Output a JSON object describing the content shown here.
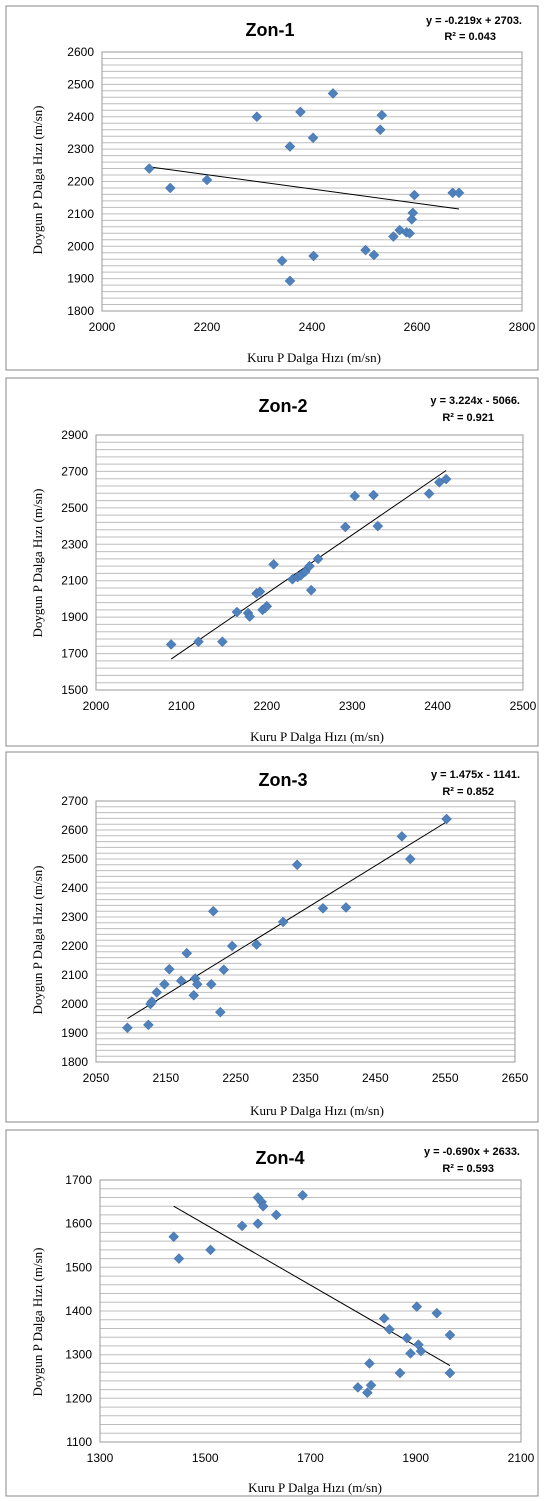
{
  "chart_data": [
    {
      "type": "scatter",
      "title": "Zon-1",
      "xlabel": "Kuru P Dalga Hızı (m/sn)",
      "ylabel": "Doygun P Dalga Hızı (m/sn)",
      "xlim": [
        2000,
        2800
      ],
      "ylim": [
        1800,
        2600
      ],
      "xticks": [
        2000,
        2200,
        2400,
        2600,
        2800
      ],
      "yticks": [
        1800,
        1900,
        2000,
        2100,
        2200,
        2300,
        2400,
        2500,
        2600
      ],
      "grid": "horizontal",
      "marker_color": "#4F81BD",
      "trendline": {
        "x": [
          2090,
          2680
        ],
        "y": [
          2245,
          2115
        ],
        "equation": "y = -0.219x + 2703.",
        "r2": "R² = 0.043"
      },
      "points": [
        [
          2090,
          2240
        ],
        [
          2130,
          2180
        ],
        [
          2200,
          2205
        ],
        [
          2295,
          2400
        ],
        [
          2358,
          2308
        ],
        [
          2378,
          2415
        ],
        [
          2402,
          2335
        ],
        [
          2440,
          2472
        ],
        [
          2530,
          2360
        ],
        [
          2533,
          2405
        ],
        [
          2343,
          1955
        ],
        [
          2358,
          1893
        ],
        [
          2403,
          1970
        ],
        [
          2502,
          1988
        ],
        [
          2518,
          1973
        ],
        [
          2555,
          2030
        ],
        [
          2567,
          2050
        ],
        [
          2580,
          2043
        ],
        [
          2586,
          2040
        ],
        [
          2590,
          2083
        ],
        [
          2592,
          2103
        ],
        [
          2595,
          2158
        ],
        [
          2668,
          2165
        ],
        [
          2680,
          2165
        ]
      ]
    },
    {
      "type": "scatter",
      "title": "Zon-2",
      "xlabel": "Kuru P Dalga Hızı (m/sn)",
      "ylabel": "Doygun P Dalga Hızı (m/sn)",
      "xlim": [
        2000,
        2500
      ],
      "ylim": [
        1500,
        2900
      ],
      "xticks": [
        2000,
        2100,
        2200,
        2300,
        2400,
        2500
      ],
      "yticks": [
        1500,
        1700,
        1900,
        2100,
        2300,
        2500,
        2700,
        2900
      ],
      "grid": "horizontal",
      "marker_color": "#4F81BD",
      "trendline": {
        "x": [
          2088,
          2410
        ],
        "y": [
          1670,
          2705
        ],
        "equation": "y = 3.224x - 5066.",
        "r2": "R² = 0.921"
      },
      "points": [
        [
          2088,
          1750
        ],
        [
          2120,
          1765
        ],
        [
          2148,
          1765
        ],
        [
          2165,
          1928
        ],
        [
          2178,
          1922
        ],
        [
          2180,
          1903
        ],
        [
          2188,
          2030
        ],
        [
          2192,
          2040
        ],
        [
          2195,
          1940
        ],
        [
          2198,
          1950
        ],
        [
          2200,
          1960
        ],
        [
          2208,
          2190
        ],
        [
          2230,
          2108
        ],
        [
          2236,
          2120
        ],
        [
          2240,
          2130
        ],
        [
          2245,
          2150
        ],
        [
          2250,
          2180
        ],
        [
          2252,
          2048
        ],
        [
          2260,
          2220
        ],
        [
          2292,
          2395
        ],
        [
          2303,
          2565
        ],
        [
          2325,
          2570
        ],
        [
          2330,
          2400
        ],
        [
          2390,
          2578
        ],
        [
          2402,
          2640
        ],
        [
          2410,
          2658
        ]
      ]
    },
    {
      "type": "scatter",
      "title": "Zon-3",
      "xlabel": "Kuru P Dalga Hızı (m/sn)",
      "ylabel": "Doygun P Dalga Hızı (m/sn)",
      "xlim": [
        2050,
        2650
      ],
      "ylim": [
        1800,
        2700
      ],
      "xticks": [
        2050,
        2150,
        2250,
        2350,
        2450,
        2550,
        2650
      ],
      "yticks": [
        1800,
        1900,
        2000,
        2100,
        2200,
        2300,
        2400,
        2500,
        2600,
        2700
      ],
      "grid": "horizontal",
      "marker_color": "#4F81BD",
      "trendline": {
        "x": [
          2095,
          2552
        ],
        "y": [
          1950,
          2628
        ],
        "equation": "y = 1.475x - 1141.",
        "r2": "R² = 0.852"
      },
      "points": [
        [
          2095,
          1918
        ],
        [
          2125,
          1928
        ],
        [
          2128,
          2000
        ],
        [
          2130,
          2008
        ],
        [
          2137,
          2040
        ],
        [
          2148,
          2068
        ],
        [
          2155,
          2120
        ],
        [
          2172,
          2080
        ],
        [
          2180,
          2175
        ],
        [
          2190,
          2030
        ],
        [
          2192,
          2088
        ],
        [
          2195,
          2068
        ],
        [
          2215,
          2068
        ],
        [
          2218,
          2320
        ],
        [
          2228,
          1972
        ],
        [
          2233,
          2118
        ],
        [
          2245,
          2200
        ],
        [
          2280,
          2205
        ],
        [
          2318,
          2283
        ],
        [
          2338,
          2480
        ],
        [
          2375,
          2330
        ],
        [
          2408,
          2333
        ],
        [
          2488,
          2578
        ],
        [
          2500,
          2500
        ],
        [
          2552,
          2638
        ]
      ]
    },
    {
      "type": "scatter",
      "title": "Zon-4",
      "xlabel": "Kuru P Dalga Hızı (m/sn)",
      "ylabel": "Doygun P Dalga Hızı (m/sn)",
      "xlim": [
        1300,
        2100
      ],
      "ylim": [
        1100,
        1700
      ],
      "xticks": [
        1300,
        1500,
        1700,
        1900,
        2100
      ],
      "yticks": [
        1100,
        1200,
        1300,
        1400,
        1500,
        1600,
        1700
      ],
      "grid": "horizontal",
      "marker_color": "#4F81BD",
      "trendline": {
        "x": [
          1440,
          1965
        ],
        "y": [
          1640,
          1275
        ],
        "equation": "y = -0.690x + 2633.",
        "r2": "R² = 0.593"
      },
      "points": [
        [
          1440,
          1570
        ],
        [
          1450,
          1520
        ],
        [
          1510,
          1540
        ],
        [
          1570,
          1595
        ],
        [
          1600,
          1600
        ],
        [
          1600,
          1660
        ],
        [
          1607,
          1650
        ],
        [
          1610,
          1640
        ],
        [
          1635,
          1620
        ],
        [
          1685,
          1665
        ],
        [
          1790,
          1225
        ],
        [
          1808,
          1213
        ],
        [
          1812,
          1280
        ],
        [
          1815,
          1230
        ],
        [
          1840,
          1383
        ],
        [
          1850,
          1358
        ],
        [
          1870,
          1258
        ],
        [
          1883,
          1338
        ],
        [
          1890,
          1303
        ],
        [
          1902,
          1410
        ],
        [
          1905,
          1323
        ],
        [
          1910,
          1308
        ],
        [
          1940,
          1395
        ],
        [
          1965,
          1345
        ],
        [
          1965,
          1258
        ]
      ]
    }
  ]
}
